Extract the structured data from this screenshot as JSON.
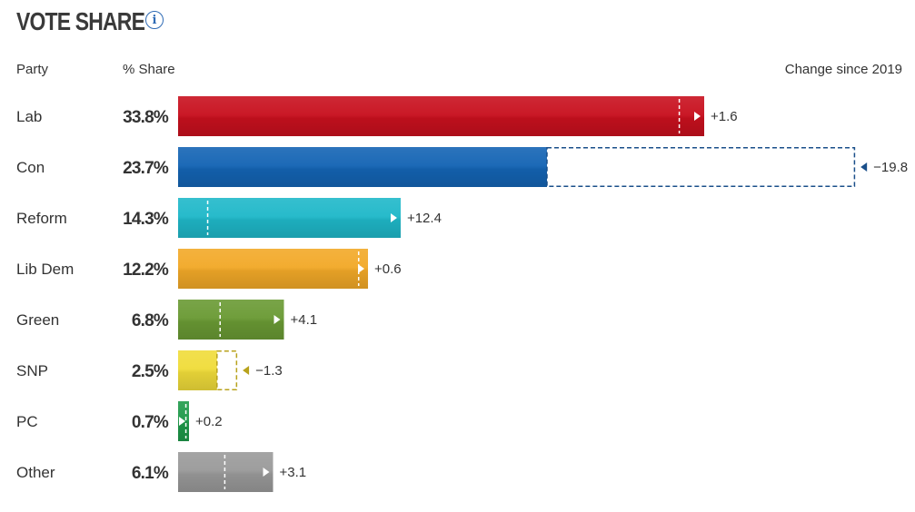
{
  "header": {
    "title": "VOTE SHARE",
    "info_icon": "info-icon",
    "col_party": "Party",
    "col_share": "% Share",
    "col_change": "Change since 2019"
  },
  "chart_data": {
    "type": "bar",
    "orientation": "horizontal",
    "title": "VOTE SHARE",
    "value_label": "% Share",
    "change_label": "Change since 2019",
    "categories": [
      "Lab",
      "Con",
      "Reform",
      "Lib Dem",
      "Green",
      "SNP",
      "PC",
      "Other"
    ],
    "share_labels": [
      "33.8%",
      "23.7%",
      "14.3%",
      "12.2%",
      "6.8%",
      "2.5%",
      "0.7%",
      "6.1%"
    ],
    "values": [
      33.8,
      23.7,
      14.3,
      12.2,
      6.8,
      2.5,
      0.7,
      6.1
    ],
    "change_labels": [
      "+1.6",
      "−19.8",
      "+12.4",
      "+0.6",
      "+4.1",
      "−1.3",
      "+0.2",
      "+3.1"
    ],
    "change": [
      1.6,
      -19.8,
      12.4,
      0.6,
      4.1,
      -1.3,
      0.2,
      3.1
    ],
    "colors": [
      "#c8101e",
      "#1464b4",
      "#1fb8c9",
      "#f2a928",
      "#6a9a34",
      "#f0dc3a",
      "#1f9a4a",
      "#9a9a9a"
    ],
    "marker_colors": [
      "#ffffff",
      "#1a4f8a",
      "#ffffff",
      "#ffffff",
      "#ffffff",
      "#b8a21c",
      "#ffffff",
      "#ffffff"
    ],
    "xlim": [
      0,
      45.5
    ],
    "grid": false,
    "legend": "none"
  }
}
